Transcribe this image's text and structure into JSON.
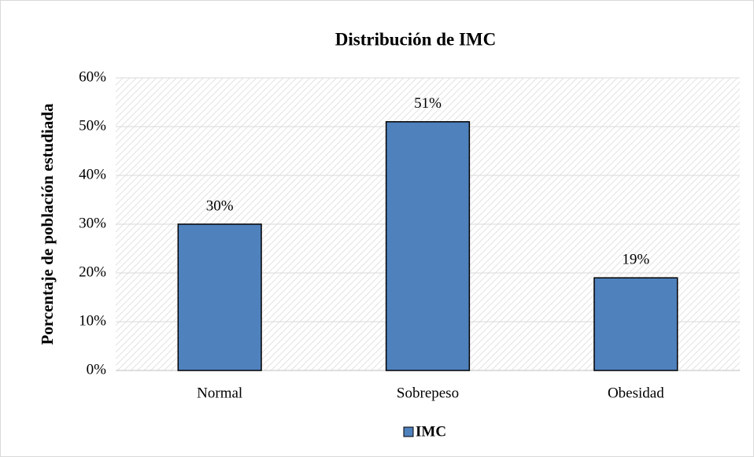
{
  "chart_data": {
    "type": "bar",
    "title": "Distribución de IMC",
    "y_label": "Porcentaje de población estudiada",
    "categories": [
      "Normal",
      "Sobrepeso",
      "Obesidad"
    ],
    "series": [
      {
        "name": "IMC",
        "color": "#4f81bd",
        "values": [
          30,
          51,
          19
        ],
        "value_labels": [
          "30%",
          "51%",
          "19%"
        ]
      }
    ],
    "ylim": [
      0,
      60
    ],
    "yticks": [
      {
        "value": 0,
        "label": "0%"
      },
      {
        "value": 10,
        "label": "10%"
      },
      {
        "value": 20,
        "label": "20%"
      },
      {
        "value": 30,
        "label": "30%"
      },
      {
        "value": 40,
        "label": "40%"
      },
      {
        "value": 50,
        "label": "50%"
      },
      {
        "value": 60,
        "label": "60%"
      }
    ],
    "grid": true,
    "legend": "bottom"
  }
}
